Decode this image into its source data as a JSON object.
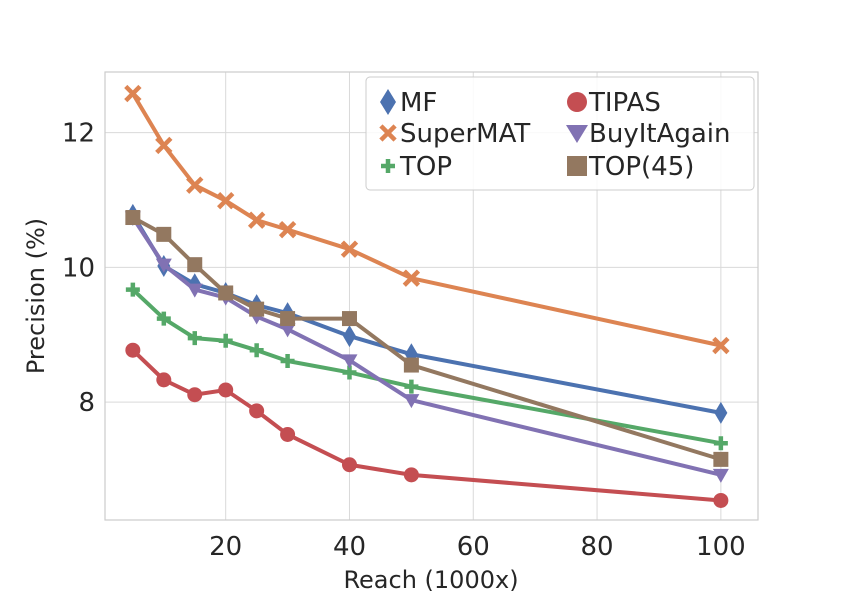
{
  "chart_data": {
    "type": "line",
    "title": "",
    "xlabel": "Reach (1000x)",
    "ylabel": "Precision (%)",
    "xlim": [
      0.5,
      106
    ],
    "ylim": [
      6.25,
      12.9
    ],
    "xticks": [
      20,
      40,
      60,
      80,
      100
    ],
    "yticks": [
      8,
      10,
      12
    ],
    "grid": true,
    "legend_position": "top-right",
    "series": [
      {
        "name": "MF",
        "color": "#4c72b0",
        "marker": "diamond",
        "x": [
          5,
          10,
          15,
          20,
          25,
          30,
          40,
          50,
          100
        ],
        "y": [
          10.78,
          10.02,
          9.75,
          9.62,
          9.44,
          9.32,
          8.98,
          8.71,
          7.84
        ]
      },
      {
        "name": "SuperMAT",
        "color": "#dd8452",
        "marker": "x",
        "x": [
          5,
          10,
          15,
          20,
          25,
          30,
          40,
          50,
          100
        ],
        "y": [
          12.58,
          11.81,
          11.22,
          10.99,
          10.7,
          10.56,
          10.27,
          9.84,
          8.84
        ]
      },
      {
        "name": "TOP",
        "color": "#55a868",
        "marker": "plus",
        "x": [
          5,
          10,
          15,
          20,
          25,
          30,
          40,
          50,
          100
        ],
        "y": [
          9.67,
          9.24,
          8.95,
          8.91,
          8.77,
          8.61,
          8.44,
          8.23,
          7.39
        ]
      },
      {
        "name": "TIPAS",
        "color": "#c44e52",
        "marker": "circle",
        "x": [
          5,
          10,
          15,
          20,
          25,
          30,
          40,
          50,
          100
        ],
        "y": [
          8.77,
          8.33,
          8.11,
          8.18,
          7.87,
          7.52,
          7.07,
          6.92,
          6.54
        ]
      },
      {
        "name": "BuyItAgain",
        "color": "#8172b3",
        "marker": "triangle-down",
        "x": [
          5,
          10,
          15,
          20,
          25,
          30,
          40,
          50,
          100
        ],
        "y": [
          10.74,
          10.04,
          9.67,
          9.55,
          9.27,
          9.08,
          8.62,
          8.03,
          6.92
        ]
      },
      {
        "name": "TOP(45)",
        "color": "#937860",
        "marker": "square",
        "x": [
          5,
          10,
          15,
          20,
          25,
          30,
          40,
          50,
          100
        ],
        "y": [
          10.74,
          10.49,
          10.04,
          9.62,
          9.38,
          9.24,
          9.24,
          8.55,
          7.15
        ]
      }
    ]
  }
}
